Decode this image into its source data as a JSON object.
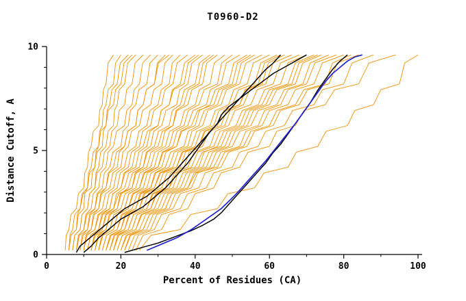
{
  "chart_data": {
    "type": "line",
    "title": "T0960-D2",
    "xlabel": "Percent of Residues (CA)",
    "ylabel": "Distance Cutoff, A",
    "xlim": [
      0,
      100
    ],
    "ylim": [
      0,
      10
    ],
    "x_ticks": [
      0,
      20,
      40,
      60,
      80,
      100
    ],
    "x_minor_ticks": [
      10,
      30,
      50,
      70,
      90
    ],
    "y_ticks": [
      0,
      5,
      10
    ],
    "y_minor_ticks": [
      1,
      2,
      3,
      4,
      6,
      7,
      8,
      9
    ],
    "grid": false,
    "legend": "none",
    "series": {
      "ensemble": {
        "color": "#ef9100",
        "stroke_width": 0.9,
        "y_levels": [
          0.2,
          1.2,
          2.2,
          3.2,
          4.2,
          5.2,
          6.2,
          7.2,
          8.2,
          9.6
        ],
        "x_sets": [
          [
            5,
            6,
            8,
            10,
            11,
            12,
            14,
            15,
            16,
            18
          ],
          [
            6,
            8,
            9,
            11,
            12,
            14,
            15,
            16,
            18,
            20
          ],
          [
            6,
            8,
            10,
            11,
            13,
            14,
            16,
            17,
            19,
            22
          ],
          [
            7,
            9,
            11,
            13,
            14,
            16,
            18,
            19,
            21,
            24
          ],
          [
            7,
            9,
            11,
            13,
            15,
            17,
            19,
            21,
            23,
            26
          ],
          [
            8,
            10,
            12,
            14,
            16,
            18,
            21,
            23,
            25,
            28
          ],
          [
            8,
            10,
            13,
            15,
            17,
            20,
            22,
            24,
            27,
            30
          ],
          [
            9,
            11,
            14,
            16,
            19,
            21,
            24,
            26,
            29,
            32
          ],
          [
            9,
            12,
            14,
            17,
            20,
            22,
            25,
            28,
            31,
            34
          ],
          [
            10,
            12,
            15,
            18,
            21,
            24,
            27,
            30,
            33,
            36
          ],
          [
            10,
            13,
            16,
            19,
            22,
            25,
            28,
            31,
            34,
            38
          ],
          [
            11,
            14,
            17,
            20,
            24,
            27,
            30,
            33,
            36,
            40
          ],
          [
            11,
            14,
            18,
            21,
            25,
            28,
            31,
            35,
            38,
            42
          ],
          [
            12,
            15,
            19,
            22,
            26,
            29,
            33,
            36,
            40,
            44
          ],
          [
            12,
            16,
            19,
            23,
            27,
            31,
            34,
            38,
            42,
            46
          ],
          [
            13,
            16,
            20,
            24,
            28,
            32,
            36,
            40,
            44,
            48
          ],
          [
            13,
            17,
            21,
            25,
            29,
            33,
            37,
            41,
            46,
            50
          ],
          [
            14,
            18,
            22,
            26,
            30,
            34,
            38,
            43,
            47,
            52
          ],
          [
            14,
            18,
            22,
            27,
            31,
            35,
            40,
            44,
            49,
            54
          ],
          [
            15,
            19,
            23,
            28,
            32,
            37,
            41,
            46,
            51,
            56
          ],
          [
            15,
            19,
            24,
            28,
            33,
            38,
            42,
            47,
            52,
            58
          ],
          [
            16,
            20,
            25,
            29,
            34,
            39,
            44,
            49,
            54,
            60
          ],
          [
            16,
            21,
            25,
            30,
            35,
            40,
            45,
            50,
            56,
            62
          ],
          [
            17,
            21,
            26,
            31,
            36,
            41,
            46,
            52,
            58,
            64
          ],
          [
            17,
            22,
            27,
            32,
            37,
            42,
            48,
            53,
            59,
            66
          ],
          [
            18,
            23,
            28,
            33,
            38,
            44,
            49,
            55,
            61,
            68
          ],
          [
            18,
            23,
            28,
            34,
            39,
            45,
            51,
            57,
            63,
            70
          ],
          [
            19,
            24,
            29,
            35,
            41,
            46,
            52,
            58,
            65,
            72
          ],
          [
            19,
            24,
            30,
            36,
            42,
            48,
            54,
            60,
            67,
            74
          ],
          [
            20,
            25,
            31,
            37,
            43,
            49,
            55,
            62,
            69,
            76
          ],
          [
            20,
            26,
            32,
            38,
            44,
            50,
            57,
            63,
            70,
            78
          ],
          [
            21,
            27,
            33,
            39,
            45,
            52,
            58,
            65,
            72,
            80
          ],
          [
            22,
            28,
            34,
            41,
            47,
            54,
            61,
            68,
            76,
            84
          ],
          [
            23,
            29,
            36,
            43,
            50,
            57,
            64,
            72,
            80,
            88
          ],
          [
            24,
            31,
            38,
            45,
            52,
            60,
            67,
            75,
            84,
            94
          ],
          [
            25,
            36,
            46,
            56,
            65,
            73,
            81,
            88,
            95,
            100
          ],
          [
            6,
            7,
            9,
            12,
            13,
            15,
            16,
            18,
            20,
            23
          ],
          [
            8,
            11,
            13,
            16,
            18,
            21,
            24,
            26,
            29,
            33
          ],
          [
            10,
            13,
            17,
            20,
            23,
            26,
            30,
            33,
            37,
            41
          ],
          [
            12,
            15,
            18,
            23,
            26,
            30,
            34,
            37,
            41,
            45
          ],
          [
            14,
            17,
            21,
            25,
            30,
            35,
            39,
            45,
            50,
            55
          ],
          [
            16,
            20,
            24,
            29,
            35,
            41,
            47,
            52,
            57,
            63
          ],
          [
            18,
            22,
            27,
            33,
            40,
            47,
            53,
            59,
            66,
            73
          ],
          [
            21,
            26,
            32,
            38,
            46,
            53,
            60,
            67,
            75,
            82
          ]
        ]
      },
      "highlighted": {
        "color": "#000000",
        "stroke_width": 1.5,
        "lines": [
          [
            [
              8,
              0.1
            ],
            [
              9,
              0.4
            ],
            [
              11,
              0.7
            ],
            [
              13,
              1.0
            ],
            [
              15,
              1.3
            ],
            [
              17,
              1.6
            ],
            [
              19,
              1.9
            ],
            [
              21,
              2.2
            ],
            [
              24,
              2.5
            ],
            [
              27,
              2.8
            ],
            [
              29,
              3.1
            ],
            [
              31,
              3.4
            ],
            [
              33,
              3.7
            ],
            [
              35,
              4.1
            ],
            [
              37,
              4.5
            ],
            [
              39,
              4.9
            ],
            [
              41,
              5.3
            ],
            [
              43,
              5.7
            ],
            [
              45,
              6.1
            ],
            [
              47,
              6.5
            ],
            [
              49,
              6.9
            ],
            [
              51,
              7.3
            ],
            [
              53,
              7.7
            ],
            [
              55,
              8.1
            ],
            [
              57,
              8.5
            ],
            [
              59,
              8.9
            ],
            [
              61,
              9.2
            ],
            [
              63,
              9.6
            ]
          ],
          [
            [
              10,
              0.1
            ],
            [
              12,
              0.4
            ],
            [
              14,
              0.8
            ],
            [
              16,
              1.1
            ],
            [
              18,
              1.4
            ],
            [
              20,
              1.7
            ],
            [
              23,
              2.0
            ],
            [
              26,
              2.3
            ],
            [
              28,
              2.6
            ],
            [
              30,
              2.9
            ],
            [
              32,
              3.2
            ],
            [
              34,
              3.6
            ],
            [
              36,
              4.0
            ],
            [
              38,
              4.4
            ],
            [
              40,
              4.9
            ],
            [
              42,
              5.4
            ],
            [
              44,
              5.9
            ],
            [
              46,
              6.3
            ],
            [
              47,
              6.7
            ],
            [
              49,
              7.1
            ],
            [
              52,
              7.5
            ],
            [
              55,
              7.9
            ],
            [
              58,
              8.3
            ],
            [
              61,
              8.7
            ],
            [
              64,
              9.0
            ],
            [
              67,
              9.3
            ],
            [
              70,
              9.6
            ]
          ],
          [
            [
              21,
              0.1
            ],
            [
              24,
              0.25
            ],
            [
              27,
              0.4
            ],
            [
              30,
              0.55
            ],
            [
              33,
              0.75
            ],
            [
              36,
              0.95
            ],
            [
              39,
              1.15
            ],
            [
              42,
              1.4
            ],
            [
              45,
              1.7
            ],
            [
              47,
              2.0
            ],
            [
              49,
              2.4
            ],
            [
              51,
              2.8
            ],
            [
              53,
              3.2
            ],
            [
              55,
              3.6
            ],
            [
              57,
              4.0
            ],
            [
              59,
              4.4
            ],
            [
              61,
              4.9
            ],
            [
              63,
              5.3
            ],
            [
              65,
              5.8
            ],
            [
              67,
              6.3
            ],
            [
              69,
              6.8
            ],
            [
              71,
              7.3
            ],
            [
              73,
              7.9
            ],
            [
              75,
              8.4
            ],
            [
              77,
              8.9
            ],
            [
              79,
              9.3
            ],
            [
              81,
              9.6
            ]
          ]
        ]
      },
      "reference": {
        "color": "#2222cc",
        "stroke_width": 1.7,
        "lines": [
          [
            [
              27,
              0.2
            ],
            [
              29,
              0.35
            ],
            [
              31,
              0.5
            ],
            [
              33,
              0.65
            ],
            [
              35,
              0.8
            ],
            [
              37,
              1.0
            ],
            [
              39,
              1.2
            ],
            [
              41,
              1.45
            ],
            [
              43,
              1.7
            ],
            [
              45,
              1.95
            ],
            [
              47,
              2.2
            ],
            [
              49,
              2.55
            ],
            [
              51,
              2.9
            ],
            [
              53,
              3.3
            ],
            [
              55,
              3.7
            ],
            [
              57,
              4.1
            ],
            [
              59,
              4.5
            ],
            [
              61,
              4.95
            ],
            [
              63,
              5.4
            ],
            [
              65,
              5.85
            ],
            [
              67,
              6.3
            ],
            [
              69,
              6.8
            ],
            [
              71,
              7.3
            ],
            [
              73,
              7.8
            ],
            [
              75,
              8.3
            ],
            [
              77,
              8.7
            ],
            [
              79,
              9.0
            ],
            [
              81,
              9.3
            ],
            [
              83,
              9.5
            ],
            [
              85,
              9.6
            ]
          ]
        ]
      }
    }
  }
}
